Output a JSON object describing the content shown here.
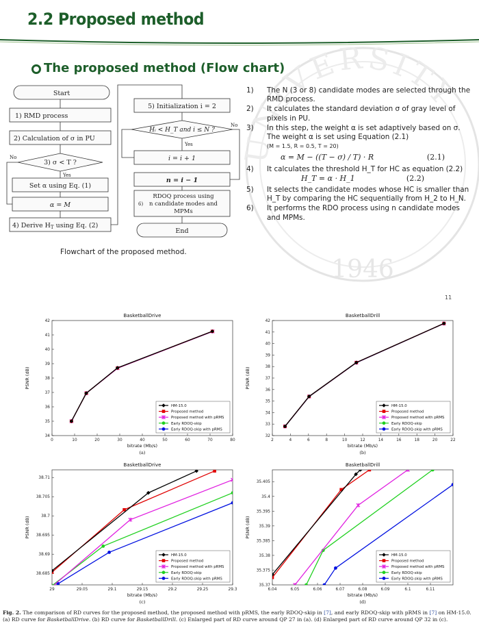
{
  "slide": {
    "title": "2.2 Proposed method",
    "subtitle": "The proposed method (Flow chart)",
    "page_number": "11",
    "seal": {
      "text": "UNIVERSITY",
      "year": "1946"
    }
  },
  "flowchart": {
    "start": "Start",
    "rmd": "1)    RMD process",
    "calc_sigma": "2) Calculation of σ in PU",
    "decision_sigma": "3)   σ < T ?",
    "no_label": "No",
    "yes_label": "Yes",
    "set_alpha": "Set α using Eq. (1)",
    "alpha_m": "α = M",
    "derive_ht": "4) Derive H",
    "derive_ht_sub": "T",
    "derive_ht_tail": " using Eq. (2)",
    "init": "5)  Initialization i = 2",
    "decision_h": "H",
    "decision_h_full": "Hᵢ < H_T and i ≤ N ?",
    "no_label_2": "No",
    "yes_label_2": "Yes",
    "increment": "i = i + 1",
    "n_assign": "n = i − 1",
    "rdoq_num": "6)",
    "rdoq_line1": "RDOQ process using",
    "rdoq_line2": "n candidate modes and",
    "rdoq_line3": "MPMs",
    "end": "End",
    "caption": "Flowchart of the proposed method."
  },
  "steps": [
    {
      "num": "1)",
      "text": "The N (3 or 8) candidate modes are selected through the RMD process."
    },
    {
      "num": "2)",
      "text": "It calculates the standard deviation σ of gray level of pixels in PU."
    },
    {
      "num": "3)",
      "text": "In this step, the weight α is set adaptively based on σ. The weight α is set using Equation (2.1)",
      "params": "(M = 1.5, R = 0.5, T = 20)",
      "equation": "α = M − ((T − σ) / T) · R",
      "eq_num": "(2.1)"
    },
    {
      "num": "4)",
      "text": "It calculates the threshold H_T for HC as equation (2.2)",
      "equation": "H_T = α · H_1",
      "eq_num": "(2.2)"
    },
    {
      "num": "5)",
      "text": "It selects the candidate modes whose HC is smaller than H_T by comparing the HC sequentially from H_2 to H_N."
    },
    {
      "num": "6)",
      "text": "It performs the RDO process using n candidate modes and MPMs."
    }
  ],
  "chart_data": [
    {
      "type": "line",
      "panel": "(a)",
      "title": "BasketballDrive",
      "xlabel": "bitrate (Mb/s)",
      "ylabel": "PSNR (dB)",
      "xlim": [
        0,
        80
      ],
      "ylim": [
        34,
        42
      ],
      "xticks": [
        "0",
        "10",
        "20",
        "30",
        "40",
        "50",
        "60",
        "70",
        "80"
      ],
      "yticks": [
        "34",
        "35",
        "36",
        "37",
        "38",
        "39",
        "40",
        "41",
        "42"
      ],
      "legend": "bottom-right",
      "series": [
        {
          "name": "HM-15.0",
          "color": "#000000",
          "marker": "diamond",
          "x": [
            8.6,
            15.2,
            29.0,
            71.0
          ],
          "y": [
            35.0,
            36.95,
            38.71,
            41.25
          ]
        },
        {
          "name": "Proposed method",
          "color": "#e00000",
          "marker": "square",
          "x": [
            8.6,
            15.2,
            29.0,
            71.0
          ],
          "y": [
            35.0,
            36.95,
            38.7,
            41.25
          ]
        },
        {
          "name": "Proposed method with pRMS",
          "color": "#e020e0",
          "marker": "x",
          "x": [
            8.6,
            15.2,
            29.1,
            71.1
          ],
          "y": [
            35.0,
            36.95,
            38.69,
            41.24
          ]
        },
        {
          "name": "Early RDOQ-skip",
          "color": "#20d020",
          "marker": "circle",
          "x": [
            8.6,
            15.1,
            29.0,
            71.0
          ],
          "y": [
            35.0,
            36.94,
            38.69,
            41.24
          ]
        },
        {
          "name": "Early RDOQ-skip with pRMS",
          "color": "#0010e0",
          "marker": "circle",
          "x": [
            8.6,
            15.1,
            29.0,
            71.0
          ],
          "y": [
            34.99,
            36.94,
            38.69,
            41.24
          ]
        }
      ]
    },
    {
      "type": "line",
      "panel": "(b)",
      "title": "BasketballDrill",
      "xlabel": "bitrate (Mb/s)",
      "ylabel": "PSNR (dB)",
      "xlim": [
        2,
        22
      ],
      "ylim": [
        32,
        42
      ],
      "xticks": [
        "2",
        "4",
        "6",
        "8",
        "10",
        "12",
        "14",
        "16",
        "18",
        "20",
        "22"
      ],
      "yticks": [
        "32",
        "33",
        "34",
        "35",
        "36",
        "37",
        "38",
        "39",
        "40",
        "41",
        "42"
      ],
      "legend": "bottom-right",
      "series": [
        {
          "name": "HM-15.0",
          "color": "#000000",
          "marker": "diamond",
          "x": [
            3.4,
            6.07,
            11.3,
            21.0
          ],
          "y": [
            32.8,
            35.41,
            38.35,
            41.75
          ]
        },
        {
          "name": "Proposed method",
          "color": "#e00000",
          "marker": "square",
          "x": [
            3.4,
            6.07,
            11.3,
            21.0
          ],
          "y": [
            32.8,
            35.4,
            38.35,
            41.75
          ]
        },
        {
          "name": "Proposed method with pRMS",
          "color": "#e020e0",
          "marker": "x",
          "x": [
            3.4,
            6.08,
            11.3,
            21.0
          ],
          "y": [
            32.8,
            35.4,
            38.34,
            41.74
          ]
        },
        {
          "name": "Early RDOQ-skip",
          "color": "#20d020",
          "marker": "circle",
          "x": [
            3.4,
            6.06,
            11.3,
            21.0
          ],
          "y": [
            32.8,
            35.38,
            38.34,
            41.74
          ]
        },
        {
          "name": "Early RDOQ-skip with pRMS",
          "color": "#0010e0",
          "marker": "circle",
          "x": [
            3.4,
            6.07,
            11.3,
            21.0
          ],
          "y": [
            32.79,
            35.38,
            38.33,
            41.74
          ]
        }
      ]
    },
    {
      "type": "line",
      "panel": "(c)",
      "title": "BasketballDrive",
      "xlabel": "bitrate (Mb/s)",
      "ylabel": "PSNR (dB)",
      "xlim": [
        29,
        29.3
      ],
      "ylim": [
        38.682,
        38.712
      ],
      "xticks": [
        "29",
        "29.05",
        "29.1",
        "29.15",
        "29.2",
        "29.25",
        "29.3"
      ],
      "ytick_values": [
        38.685,
        38.69,
        38.695,
        38.7,
        38.705,
        38.71
      ],
      "yticks": [
        "38.685",
        "38.69",
        "38.695",
        "38.7",
        "38.705",
        "38.71"
      ],
      "legend": "bottom-right",
      "series": [
        {
          "name": "HM-15.0",
          "color": "#000000",
          "marker": "diamond",
          "x": [
            29.0,
            29.16,
            29.24
          ],
          "y": [
            38.6857,
            38.706,
            38.7117
          ]
        },
        {
          "name": "Proposed method",
          "color": "#e00000",
          "marker": "square",
          "x": [
            29.0,
            29.12,
            29.27
          ],
          "y": [
            38.6853,
            38.7016,
            38.7117
          ]
        },
        {
          "name": "Proposed method with pRMS",
          "color": "#e020e0",
          "marker": "x",
          "x": [
            29.0,
            29.13,
            29.3
          ],
          "y": [
            38.6815,
            38.699,
            38.7094
          ]
        },
        {
          "name": "Early RDOQ-skip",
          "color": "#20d020",
          "marker": "circle",
          "x": [
            29.0,
            29.085,
            29.3
          ],
          "y": [
            38.6818,
            38.6921,
            38.706
          ]
        },
        {
          "name": "Early RDOQ-skip with pRMS",
          "color": "#0010e0",
          "marker": "circle",
          "x": [
            29.01,
            29.095,
            29.3
          ],
          "y": [
            38.6823,
            38.6905,
            38.7034
          ]
        }
      ]
    },
    {
      "type": "line",
      "panel": "(d)",
      "title": "BasketballDrill",
      "xlabel": "bitrate (Mb/s)",
      "ylabel": "PSNR (dB)",
      "xlim": [
        6.04,
        6.12
      ],
      "ylim": [
        35.37,
        35.409
      ],
      "xticks": [
        "6.04",
        "6.05",
        "6.06",
        "6.07",
        "6.08",
        "6.09",
        "6.1",
        "6.11"
      ],
      "ytick_values": [
        35.37,
        35.375,
        35.38,
        35.385,
        35.39,
        35.395,
        35.4,
        35.405
      ],
      "yticks": [
        "35.37",
        "35.375",
        "35.38",
        "35.385",
        "35.39",
        "35.395",
        "35.4",
        "35.405"
      ],
      "legend": "bottom-right",
      "series": [
        {
          "name": "HM-15.0",
          "color": "#000000",
          "marker": "diamond",
          "x": [
            6.04,
            6.077,
            6.079
          ],
          "y": [
            35.3735,
            35.4075,
            35.409
          ]
        },
        {
          "name": "Proposed method",
          "color": "#e00000",
          "marker": "square",
          "x": [
            6.04,
            6.0705,
            6.083
          ],
          "y": [
            35.3725,
            35.4023,
            35.409
          ]
        },
        {
          "name": "Proposed method with pRMS",
          "color": "#e020e0",
          "marker": "x",
          "x": [
            6.05,
            6.078,
            6.1
          ],
          "y": [
            35.37,
            35.397,
            35.409
          ]
        },
        {
          "name": "Early RDOQ-skip",
          "color": "#20d020",
          "marker": "circle",
          "x": [
            6.055,
            6.0625,
            6.111
          ],
          "y": [
            35.37,
            35.3817,
            35.409
          ]
        },
        {
          "name": "Early RDOQ-skip with pRMS",
          "color": "#0010e0",
          "marker": "circle",
          "x": [
            6.063,
            6.068,
            6.12
          ],
          "y": [
            35.37,
            35.3757,
            35.404
          ]
        }
      ]
    }
  ],
  "figure_caption": {
    "label": "Fig. 2.",
    "text1": " The comparison of RD curves for the proposed method, the proposed method with pRMS, the early RDOQ-skip in ",
    "ref1": "[7]",
    "text2": ", and early RDOQ-skip with pRMS in ",
    "ref2": "[7]",
    "text3": " on HM-15.0. (a) RD curve for ",
    "seq1": "BasketballDrive",
    "text4": ". (b) RD curve for ",
    "seq2": "BasketballDrill",
    "text5": ". (c) Enlarged part of RD curve around QP 27 in (a). (d) Enlarged part of RD curve around QP 32 in (c)."
  }
}
